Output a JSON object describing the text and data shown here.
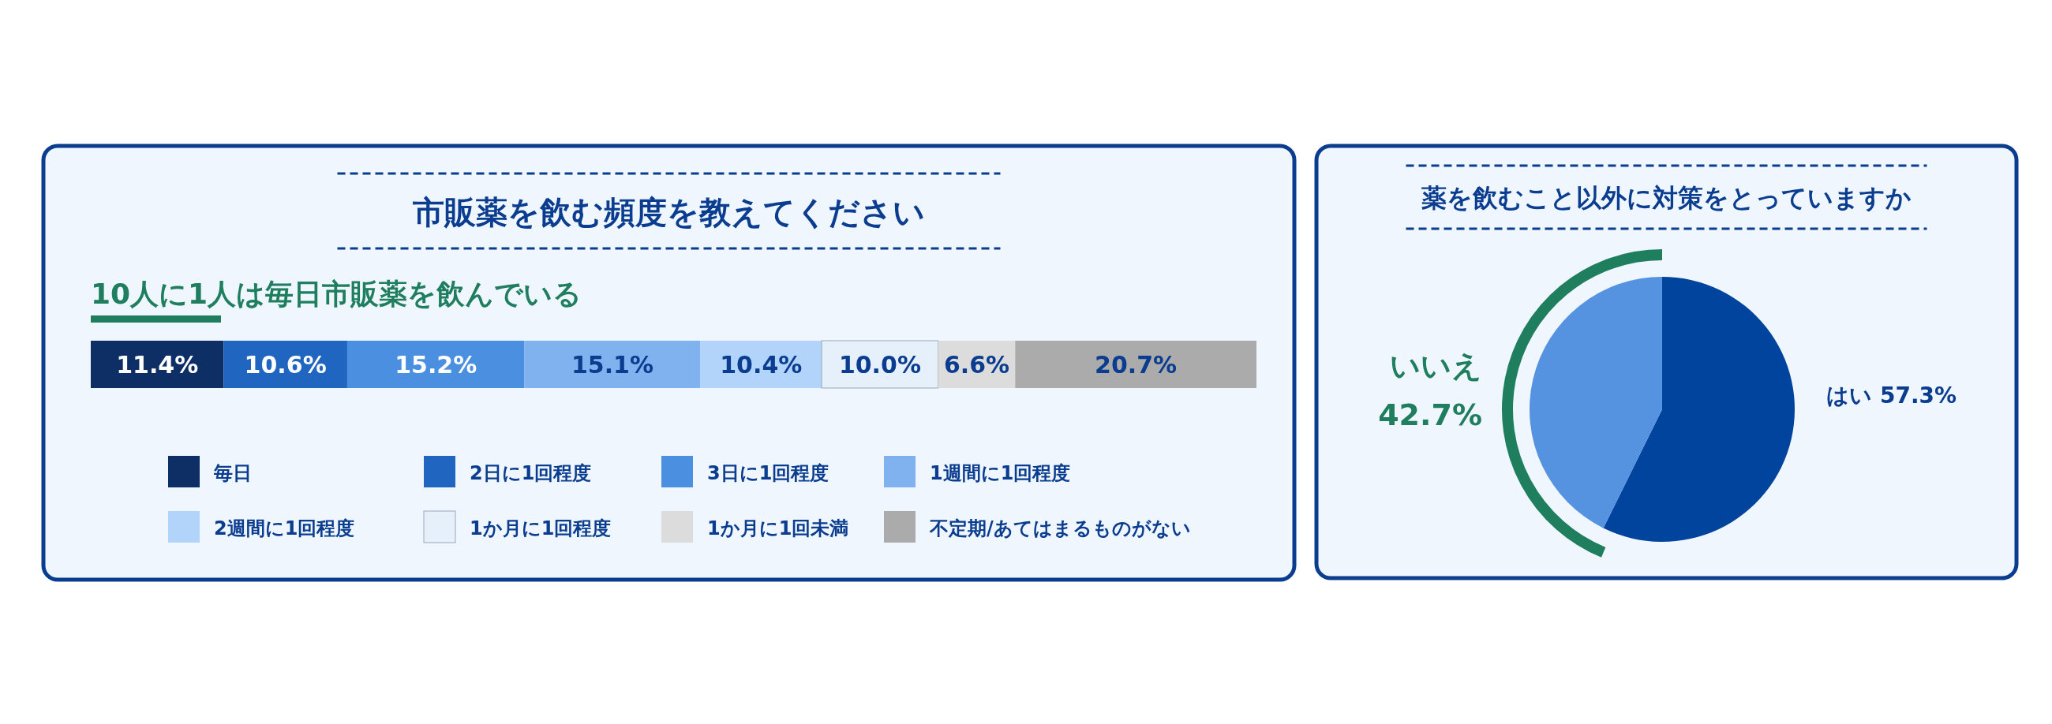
{
  "chart_data": [
    {
      "type": "bar",
      "orientation": "horizontal",
      "stacked": true,
      "title": "市販薬を飲む頻度を教えてください",
      "subtitle": "10人に1人は毎日市販薬を飲んでいる",
      "categories": [
        null
      ],
      "legend": "bottom",
      "series": [
        {
          "name": "毎日",
          "color": "#0d2f66",
          "values": [
            11.4
          ],
          "value_labels": [
            "11.4%"
          ]
        },
        {
          "name": "2日に1回程度",
          "color": "#2066c0",
          "values": [
            10.6
          ],
          "value_labels": [
            "10.6%"
          ]
        },
        {
          "name": "3日に1回程度",
          "color": "#4a8fe0",
          "values": [
            15.2
          ],
          "value_labels": [
            "15.2%"
          ]
        },
        {
          "name": "1週間に1回程度",
          "color": "#7fb2ef",
          "values": [
            15.1
          ],
          "value_labels": [
            "15.1%"
          ]
        },
        {
          "name": "2週間に1回程度",
          "color": "#b3d4fa",
          "values": [
            10.4
          ],
          "value_labels": [
            "10.4%"
          ]
        },
        {
          "name": "1か月に1回程度",
          "color": "#e6f0fb",
          "values": [
            10.0
          ],
          "value_labels": [
            "10.0%"
          ]
        },
        {
          "name": "1か月に1回未満",
          "color": "#dcdcdc",
          "values": [
            6.6
          ],
          "value_labels": [
            "6.6%"
          ]
        },
        {
          "name": "不定期/あてはまるものがない",
          "color": "#ababab",
          "values": [
            20.7
          ],
          "value_labels": [
            "20.7%"
          ]
        }
      ]
    },
    {
      "type": "pie",
      "title": "薬を飲むこと以外に対策をとっていますか",
      "categories": [
        "はい",
        "いいえ"
      ],
      "values": [
        57.3,
        42.7
      ],
      "colors": [
        "#00449e",
        "#5593e0"
      ],
      "value_labels": [
        "57.3%",
        "42.7%"
      ]
    }
  ]
}
